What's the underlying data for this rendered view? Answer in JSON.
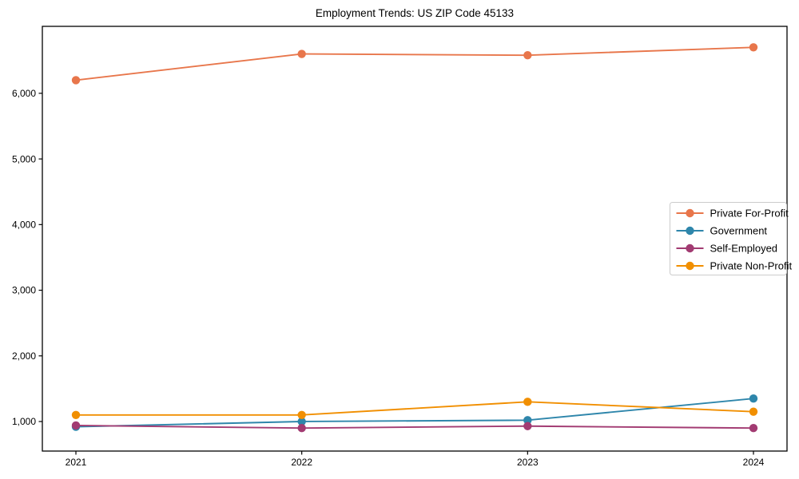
{
  "chart_data": {
    "type": "line",
    "title": "Employment Trends: US ZIP Code 45133",
    "x": [
      2021,
      2022,
      2023,
      2024
    ],
    "x_tick_labels": [
      "2021",
      "2022",
      "2023",
      "2024"
    ],
    "series": [
      {
        "name": "Private For-Profit",
        "color": "#E8764B",
        "values": [
          6200,
          6600,
          6580,
          6700
        ]
      },
      {
        "name": "Government",
        "color": "#2E86AB",
        "values": [
          920,
          1000,
          1020,
          1350
        ]
      },
      {
        "name": "Self-Employed",
        "color": "#A23B72",
        "values": [
          940,
          900,
          930,
          900
        ]
      },
      {
        "name": "Private Non-Profit",
        "color": "#F18F01",
        "values": [
          1100,
          1100,
          1300,
          1150
        ]
      }
    ],
    "y_ticks": [
      1000,
      2000,
      3000,
      4000,
      5000,
      6000
    ],
    "y_tick_labels": [
      "1,000",
      "2,000",
      "3,000",
      "4,000",
      "5,000",
      "6,000"
    ],
    "ylim": [
      550,
      7020
    ],
    "xlabel": "",
    "ylabel": "",
    "grid": false,
    "marker": "circle",
    "axis_color": "#000000",
    "background": "#ffffff",
    "legend": {
      "position": "right-center",
      "entries": [
        "Private For-Profit",
        "Government",
        "Self-Employed",
        "Private Non-Profit"
      ],
      "border_color": "#cccccc",
      "background": "#ffffff"
    }
  }
}
